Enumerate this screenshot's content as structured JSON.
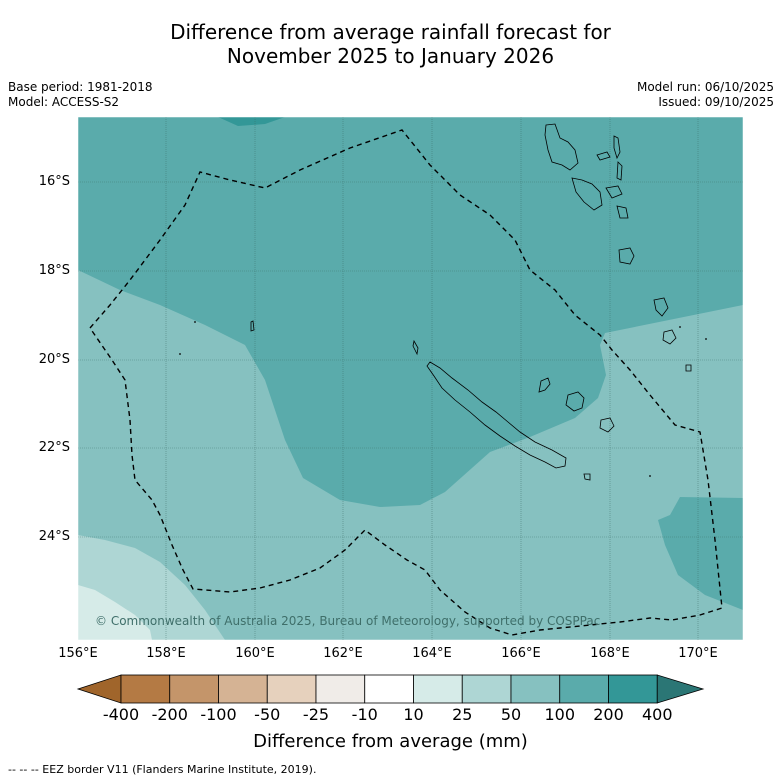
{
  "title_line1": "Difference from average rainfall forecast for",
  "title_line2": "November 2025 to January 2026",
  "base_period": "Base period: 1981-2018",
  "model": "Model: ACCESS-S2",
  "model_run": "Model run: 06/10/2025",
  "issued": "Issued: 09/10/2025",
  "copyright": "© Commonwealth of Australia 2025, Bureau of Meteorology, supported by COSPPac",
  "lat_labels": [
    "16°S",
    "18°S",
    "20°S",
    "22°S",
    "24°S"
  ],
  "lon_labels": [
    "156°E",
    "158°E",
    "160°E",
    "162°E",
    "164°E",
    "166°E",
    "168°E",
    "170°E"
  ],
  "colorbar": {
    "title": "Difference from average (mm)",
    "labels": [
      "-400",
      "-200",
      "-100",
      "-50",
      "-25",
      "-10",
      "10",
      "25",
      "50",
      "100",
      "200",
      "400"
    ],
    "colors": [
      "#a0652b",
      "#b47a44",
      "#c4956a",
      "#d5b394",
      "#e6d1bd",
      "#f0ece8",
      "#ffffff",
      "#d6ebe8",
      "#aed6d4",
      "#86c1c0",
      "#5aabab",
      "#339797",
      "#2b7675"
    ]
  },
  "footnote": "--  --  -- EEZ border V11 (Flanders Marine Institute, 2019).",
  "map_colors": {
    "c50": "#86c1c0",
    "c100": "#5aabab",
    "c25": "#aed6d4",
    "c10": "#d6ebe8",
    "c200": "#339797"
  }
}
